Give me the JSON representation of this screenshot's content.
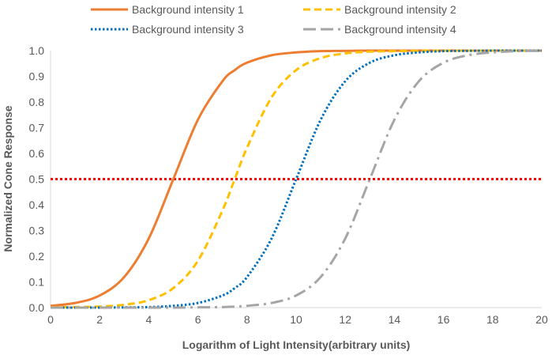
{
  "chart_data": {
    "type": "line",
    "title": "",
    "xlabel": "Logarithm of Light Intensity(arbitrary units)",
    "ylabel": "Normalized Cone Response",
    "xlim": [
      0,
      20
    ],
    "ylim": [
      0,
      1
    ],
    "x_ticks": [
      "0",
      "2",
      "4",
      "6",
      "8",
      "10",
      "12",
      "14",
      "16",
      "18",
      "20"
    ],
    "y_ticks": [
      "0.0",
      "0.1",
      "0.2",
      "0.3",
      "0.4",
      "0.5",
      "0.6",
      "0.7",
      "0.8",
      "0.9",
      "1.0"
    ],
    "grid": false,
    "legend_position": "top",
    "x": [
      0,
      1,
      2,
      3,
      4,
      5,
      6,
      7,
      7.5,
      8,
      9,
      10,
      11,
      12,
      13,
      14,
      15,
      16,
      17,
      18,
      19,
      20
    ],
    "series": [
      {
        "name": "Background intensity 1",
        "color": "#ED7D31",
        "style": "solid",
        "values": [
          0.007,
          0.018,
          0.047,
          0.119,
          0.269,
          0.5,
          0.731,
          0.881,
          0.924,
          0.953,
          0.982,
          0.993,
          0.998,
          0.999,
          1.0,
          1.0,
          1.0,
          1.0,
          1.0,
          1.0,
          1.0,
          1.0
        ]
      },
      {
        "name": "Background intensity 2",
        "color": "#FFC000",
        "style": "dashed",
        "values": [
          0.001,
          0.002,
          0.004,
          0.011,
          0.029,
          0.076,
          0.182,
          0.378,
          0.5,
          0.622,
          0.818,
          0.924,
          0.971,
          0.989,
          0.996,
          0.998,
          0.999,
          1.0,
          1.0,
          1.0,
          1.0,
          1.0
        ]
      },
      {
        "name": "Background intensity 3",
        "color": "#0070C0",
        "style": "dotted",
        "values": [
          0.0,
          0.0,
          0.0,
          0.001,
          0.002,
          0.007,
          0.018,
          0.047,
          0.076,
          0.119,
          0.269,
          0.5,
          0.731,
          0.881,
          0.953,
          0.982,
          0.993,
          0.998,
          0.999,
          1.0,
          1.0,
          1.0
        ]
      },
      {
        "name": "Background intensity 4",
        "color": "#A5A5A5",
        "style": "dash-dot",
        "values": [
          0.0,
          0.0,
          0.0,
          0.0,
          0.0,
          0.0,
          0.001,
          0.002,
          0.004,
          0.007,
          0.018,
          0.047,
          0.119,
          0.269,
          0.5,
          0.731,
          0.881,
          0.953,
          0.982,
          0.993,
          0.998,
          0.999
        ]
      }
    ],
    "reference_line": {
      "y": 0.5,
      "color": "#FF0000",
      "style": "dotted"
    }
  }
}
